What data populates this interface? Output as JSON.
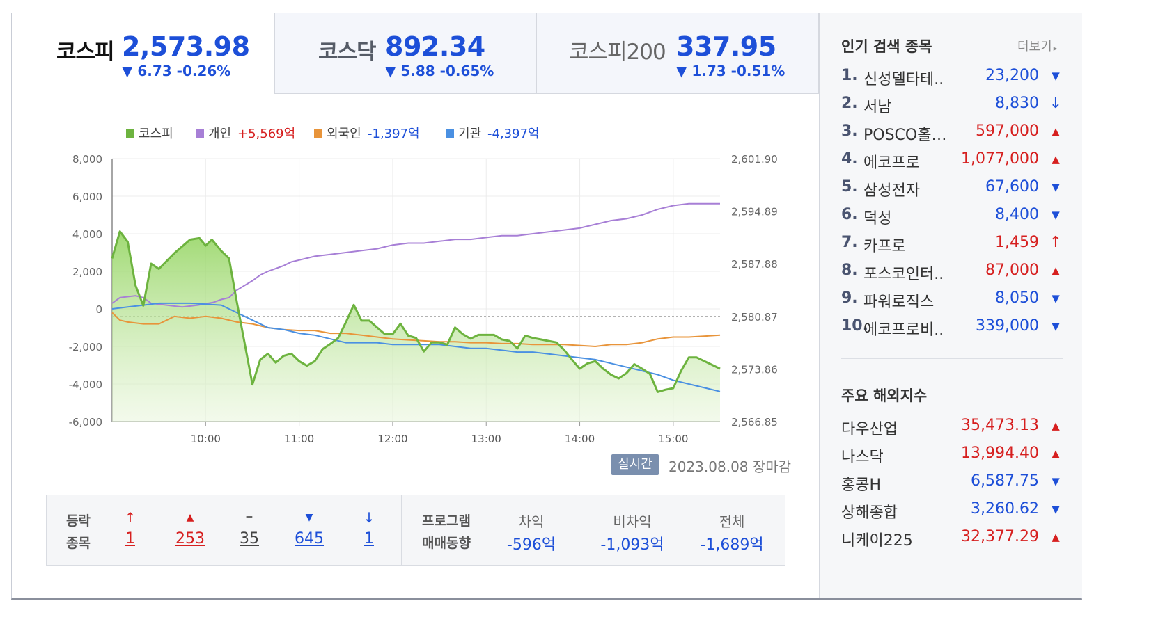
{
  "tabs": [
    {
      "name": "코스피",
      "value": "2,573.98",
      "change": "▼ 6.73 -0.26%"
    },
    {
      "name": "코스닥",
      "value": "892.34",
      "change": "▼ 5.88 -0.65%"
    },
    {
      "name": "코스피200",
      "value": "337.95",
      "change": "▼ 1.73 -0.51%"
    }
  ],
  "legend": {
    "kospi": "코스피",
    "individual": "개인",
    "individual_val": "+5,569억",
    "foreign": "외국인",
    "foreign_val": "-1,397억",
    "institution": "기관",
    "institution_val": "-4,397억"
  },
  "chart_data": {
    "type": "line",
    "x_ticks": [
      "10:00",
      "11:00",
      "12:00",
      "13:00",
      "14:00",
      "15:00"
    ],
    "y_left_ticks": [
      "8,000",
      "6,000",
      "4,000",
      "2,000",
      "0",
      "-2,000",
      "-4,000",
      "-6,000"
    ],
    "y_right_ticks": [
      "2,601.90",
      "2,594.89",
      "2,587.88",
      "2,580.87",
      "2,573.86",
      "2,566.85"
    ],
    "ylim_left": [
      -6000,
      8000
    ],
    "ylim_right": [
      2566.85,
      2601.9
    ],
    "x_range": [
      "09:00",
      "15:30"
    ],
    "baseline_right": 2580.87,
    "colors": {
      "kospi": "#6db33f",
      "individual": "#a77fd6",
      "foreign": "#e8943a",
      "institution": "#4a90e2"
    },
    "series": [
      {
        "name": "코스피",
        "axis": "right",
        "points": [
          [
            0,
            2588.6
          ],
          [
            5,
            2592.2
          ],
          [
            10,
            2590.8
          ],
          [
            15,
            2585.0
          ],
          [
            20,
            2582.3
          ],
          [
            25,
            2587.9
          ],
          [
            30,
            2587.2
          ],
          [
            40,
            2589.3
          ],
          [
            50,
            2591.1
          ],
          [
            56,
            2591.3
          ],
          [
            60,
            2590.3
          ],
          [
            64,
            2591.1
          ],
          [
            70,
            2589.6
          ],
          [
            75,
            2588.6
          ],
          [
            80,
            2582.8
          ],
          [
            90,
            2571.8
          ],
          [
            95,
            2575.1
          ],
          [
            100,
            2575.9
          ],
          [
            105,
            2574.7
          ],
          [
            110,
            2575.6
          ],
          [
            115,
            2575.9
          ],
          [
            120,
            2574.9
          ],
          [
            125,
            2574.3
          ],
          [
            130,
            2574.9
          ],
          [
            135,
            2576.5
          ],
          [
            140,
            2577.2
          ],
          [
            145,
            2578.0
          ],
          [
            150,
            2580.1
          ],
          [
            155,
            2582.4
          ],
          [
            160,
            2580.3
          ],
          [
            165,
            2580.3
          ],
          [
            170,
            2579.4
          ],
          [
            175,
            2578.5
          ],
          [
            180,
            2578.5
          ],
          [
            185,
            2579.9
          ],
          [
            190,
            2578.3
          ],
          [
            195,
            2578.0
          ],
          [
            200,
            2576.2
          ],
          [
            205,
            2577.4
          ],
          [
            210,
            2577.4
          ],
          [
            215,
            2577.1
          ],
          [
            220,
            2579.4
          ],
          [
            225,
            2578.5
          ],
          [
            230,
            2577.9
          ],
          [
            235,
            2578.4
          ],
          [
            245,
            2578.4
          ],
          [
            250,
            2577.8
          ],
          [
            255,
            2577.6
          ],
          [
            260,
            2576.6
          ],
          [
            265,
            2578.3
          ],
          [
            270,
            2578.0
          ],
          [
            275,
            2577.8
          ],
          [
            280,
            2577.6
          ],
          [
            285,
            2577.4
          ],
          [
            290,
            2576.4
          ],
          [
            295,
            2575.1
          ],
          [
            300,
            2573.9
          ],
          [
            305,
            2574.6
          ],
          [
            310,
            2574.9
          ],
          [
            315,
            2573.9
          ],
          [
            320,
            2573.1
          ],
          [
            325,
            2572.6
          ],
          [
            330,
            2573.3
          ],
          [
            335,
            2574.5
          ],
          [
            340,
            2573.9
          ],
          [
            345,
            2573.2
          ],
          [
            350,
            2570.8
          ],
          [
            355,
            2571.1
          ],
          [
            360,
            2571.3
          ],
          [
            365,
            2573.6
          ],
          [
            370,
            2575.4
          ],
          [
            375,
            2575.4
          ],
          [
            390,
            2573.9
          ]
        ]
      },
      {
        "name": "개인",
        "axis": "left",
        "points": [
          [
            0,
            300
          ],
          [
            5,
            600
          ],
          [
            15,
            700
          ],
          [
            20,
            600
          ],
          [
            25,
            300
          ],
          [
            35,
            200
          ],
          [
            45,
            100
          ],
          [
            55,
            200
          ],
          [
            65,
            350
          ],
          [
            70,
            500
          ],
          [
            75,
            600
          ],
          [
            80,
            1000
          ],
          [
            90,
            1500
          ],
          [
            95,
            1800
          ],
          [
            100,
            2000
          ],
          [
            110,
            2300
          ],
          [
            115,
            2500
          ],
          [
            120,
            2600
          ],
          [
            125,
            2700
          ],
          [
            130,
            2800
          ],
          [
            140,
            2900
          ],
          [
            150,
            3000
          ],
          [
            160,
            3100
          ],
          [
            170,
            3200
          ],
          [
            175,
            3300
          ],
          [
            180,
            3400
          ],
          [
            190,
            3500
          ],
          [
            200,
            3500
          ],
          [
            210,
            3600
          ],
          [
            220,
            3700
          ],
          [
            230,
            3700
          ],
          [
            240,
            3800
          ],
          [
            250,
            3900
          ],
          [
            260,
            3900
          ],
          [
            270,
            4000
          ],
          [
            280,
            4100
          ],
          [
            290,
            4200
          ],
          [
            300,
            4300
          ],
          [
            310,
            4500
          ],
          [
            320,
            4700
          ],
          [
            330,
            4800
          ],
          [
            340,
            5000
          ],
          [
            350,
            5300
          ],
          [
            360,
            5500
          ],
          [
            370,
            5600
          ],
          [
            390,
            5600
          ]
        ]
      },
      {
        "name": "외국인",
        "axis": "left",
        "points": [
          [
            0,
            -200
          ],
          [
            5,
            -600
          ],
          [
            10,
            -700
          ],
          [
            20,
            -800
          ],
          [
            30,
            -800
          ],
          [
            40,
            -400
          ],
          [
            50,
            -500
          ],
          [
            60,
            -400
          ],
          [
            70,
            -500
          ],
          [
            80,
            -700
          ],
          [
            90,
            -800
          ],
          [
            100,
            -1000
          ],
          [
            110,
            -1100
          ],
          [
            120,
            -1150
          ],
          [
            130,
            -1150
          ],
          [
            140,
            -1300
          ],
          [
            150,
            -1300
          ],
          [
            160,
            -1400
          ],
          [
            170,
            -1500
          ],
          [
            180,
            -1600
          ],
          [
            190,
            -1650
          ],
          [
            200,
            -1700
          ],
          [
            210,
            -1750
          ],
          [
            220,
            -1750
          ],
          [
            230,
            -1800
          ],
          [
            240,
            -1800
          ],
          [
            250,
            -1850
          ],
          [
            260,
            -1850
          ],
          [
            270,
            -1900
          ],
          [
            280,
            -1900
          ],
          [
            290,
            -1900
          ],
          [
            300,
            -1950
          ],
          [
            310,
            -2000
          ],
          [
            320,
            -1900
          ],
          [
            330,
            -1900
          ],
          [
            340,
            -1800
          ],
          [
            350,
            -1600
          ],
          [
            360,
            -1500
          ],
          [
            370,
            -1500
          ],
          [
            390,
            -1400
          ]
        ]
      },
      {
        "name": "기관",
        "axis": "left",
        "points": [
          [
            0,
            0
          ],
          [
            10,
            100
          ],
          [
            20,
            200
          ],
          [
            30,
            300
          ],
          [
            40,
            300
          ],
          [
            50,
            300
          ],
          [
            60,
            250
          ],
          [
            70,
            200
          ],
          [
            80,
            -200
          ],
          [
            90,
            -600
          ],
          [
            100,
            -1000
          ],
          [
            110,
            -1100
          ],
          [
            120,
            -1300
          ],
          [
            130,
            -1400
          ],
          [
            140,
            -1600
          ],
          [
            150,
            -1800
          ],
          [
            160,
            -1800
          ],
          [
            170,
            -1800
          ],
          [
            180,
            -1900
          ],
          [
            190,
            -1900
          ],
          [
            200,
            -1900
          ],
          [
            210,
            -1900
          ],
          [
            220,
            -2000
          ],
          [
            230,
            -2100
          ],
          [
            240,
            -2100
          ],
          [
            250,
            -2200
          ],
          [
            260,
            -2300
          ],
          [
            270,
            -2300
          ],
          [
            280,
            -2400
          ],
          [
            290,
            -2500
          ],
          [
            300,
            -2600
          ],
          [
            310,
            -2700
          ],
          [
            320,
            -2900
          ],
          [
            330,
            -3100
          ],
          [
            340,
            -3300
          ],
          [
            350,
            -3500
          ],
          [
            360,
            -3800
          ],
          [
            370,
            -4000
          ],
          [
            390,
            -4400
          ]
        ]
      }
    ]
  },
  "realtime_badge": "실시간",
  "date_text": "2023.08.08 장마감",
  "stats": {
    "head1": "등락",
    "head2": "종목",
    "items": [
      {
        "icon": "↑",
        "value": "1",
        "dir": "up"
      },
      {
        "icon": "▲",
        "value": "253",
        "dir": "up"
      },
      {
        "icon": "━",
        "value": "35",
        "dir": "flat"
      },
      {
        "icon": "▼",
        "value": "645",
        "dir": "down"
      },
      {
        "icon": "↓",
        "value": "1",
        "dir": "down"
      }
    ],
    "program_head1": "프로그램",
    "program_head2": "매매동향",
    "program": [
      {
        "label": "차익",
        "value": "-596억"
      },
      {
        "label": "비차익",
        "value": "-1,093억"
      },
      {
        "label": "전체",
        "value": "-1,689억"
      }
    ]
  },
  "popular": {
    "title": "인기 검색 종목",
    "more": "더보기",
    "items": [
      {
        "rank": "1.",
        "name": "신성델타테..",
        "price": "23,200",
        "dir": "down",
        "icon": "▼"
      },
      {
        "rank": "2.",
        "name": "서남",
        "price": "8,830",
        "dir": "down",
        "icon": "↓"
      },
      {
        "rank": "3.",
        "name": "POSCO홀…",
        "price": "597,000",
        "dir": "up",
        "icon": "▲"
      },
      {
        "rank": "4.",
        "name": "에코프로",
        "price": "1,077,000",
        "dir": "up",
        "icon": "▲"
      },
      {
        "rank": "5.",
        "name": "삼성전자",
        "price": "67,600",
        "dir": "down",
        "icon": "▼"
      },
      {
        "rank": "6.",
        "name": "덕성",
        "price": "8,400",
        "dir": "down",
        "icon": "▼"
      },
      {
        "rank": "7.",
        "name": "카프로",
        "price": "1,459",
        "dir": "up",
        "icon": "↑"
      },
      {
        "rank": "8.",
        "name": "포스코인터..",
        "price": "87,000",
        "dir": "up",
        "icon": "▲"
      },
      {
        "rank": "9.",
        "name": "파워로직스",
        "price": "8,050",
        "dir": "down",
        "icon": "▼"
      },
      {
        "rank": "10.",
        "name": "에코프로비..",
        "price": "339,000",
        "dir": "down",
        "icon": "▼"
      }
    ]
  },
  "world": {
    "title": "주요 해외지수",
    "items": [
      {
        "name": "다우산업",
        "value": "35,473.13",
        "dir": "up",
        "icon": "▲"
      },
      {
        "name": "나스닥",
        "value": "13,994.40",
        "dir": "up",
        "icon": "▲"
      },
      {
        "name": "홍콩H",
        "value": "6,587.75",
        "dir": "down",
        "icon": "▼"
      },
      {
        "name": "상해종합",
        "value": "3,260.62",
        "dir": "down",
        "icon": "▼"
      },
      {
        "name": "니케이225",
        "value": "32,377.29",
        "dir": "up",
        "icon": "▲"
      }
    ]
  }
}
